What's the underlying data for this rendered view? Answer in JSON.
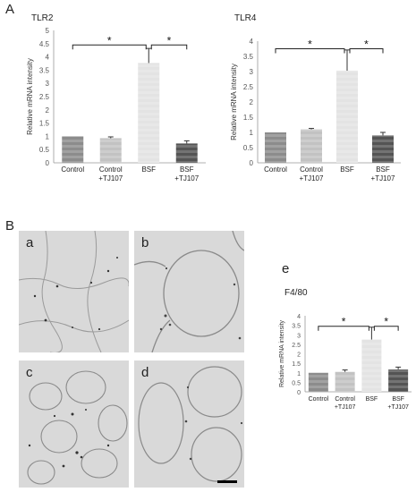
{
  "panels": {
    "A": "A",
    "B": "B",
    "e": "e"
  },
  "micrographs": [
    "a",
    "b",
    "c",
    "d"
  ],
  "chart_data": [
    {
      "id": "tlr2",
      "type": "bar",
      "title": "TLR2",
      "ylabel": "Relative mRNA intensity",
      "categories": [
        [
          "Control"
        ],
        [
          "Control",
          "+TJ107"
        ],
        [
          "BSF"
        ],
        [
          "BSF",
          "+TJ107"
        ]
      ],
      "values": [
        1.0,
        0.93,
        3.77,
        0.73
      ],
      "errors": [
        0.0,
        0.05,
        0.55,
        0.1
      ],
      "ylim": [
        0,
        5
      ],
      "yticks": [
        "0",
        "0.5",
        "1",
        "1.5",
        "2",
        "2.5",
        "3",
        "3.5",
        "4",
        "4.5",
        "5"
      ],
      "significance": [
        {
          "from": 0,
          "to": 2,
          "label": "*",
          "y": 4.45
        },
        {
          "from": 2,
          "to": 3,
          "label": "*",
          "y": 4.45
        }
      ],
      "bar_colors": [
        "#8c8c8c",
        "#c2c2c2",
        "#e3e3e3",
        "#545454"
      ]
    },
    {
      "id": "tlr4",
      "type": "bar",
      "title": "TLR4",
      "ylabel": "Relative mRNA intensity",
      "categories": [
        [
          "Control"
        ],
        [
          "Control",
          "+TJ107"
        ],
        [
          "BSF"
        ],
        [
          "BSF",
          "+TJ107"
        ]
      ],
      "values": [
        1.0,
        1.1,
        3.03,
        0.9
      ],
      "errors": [
        0.0,
        0.03,
        0.68,
        0.1
      ],
      "ylim": [
        0,
        4
      ],
      "yticks": [
        "0",
        "0.5",
        "1",
        "1.5",
        "2",
        "2.5",
        "3",
        "3.5",
        "4"
      ],
      "significance": [
        {
          "from": 0,
          "to": 2,
          "label": "*",
          "y": 3.75
        },
        {
          "from": 2,
          "to": 3,
          "label": "*",
          "y": 3.75
        }
      ],
      "bar_colors": [
        "#8c8c8c",
        "#c2c2c2",
        "#e3e3e3",
        "#545454"
      ]
    },
    {
      "id": "f480",
      "type": "bar",
      "title": "F4/80",
      "ylabel": "Relative mRNA intensity",
      "categories": [
        [
          "Control"
        ],
        [
          "Control",
          "+TJ107"
        ],
        [
          "BSF"
        ],
        [
          "BSF",
          "+TJ107"
        ]
      ],
      "values": [
        1.0,
        1.05,
        2.75,
        1.18
      ],
      "errors": [
        0.0,
        0.1,
        0.65,
        0.12
      ],
      "ylim": [
        0,
        4
      ],
      "yticks": [
        "0",
        "0.5",
        "1",
        "1.5",
        "2",
        "2.5",
        "3",
        "3.5",
        "4"
      ],
      "significance": [
        {
          "from": 0,
          "to": 2,
          "label": "*",
          "y": 3.45
        },
        {
          "from": 2,
          "to": 3,
          "label": "*",
          "y": 3.45
        }
      ],
      "bar_colors": [
        "#8c8c8c",
        "#c2c2c2",
        "#e3e3e3",
        "#545454"
      ]
    }
  ]
}
